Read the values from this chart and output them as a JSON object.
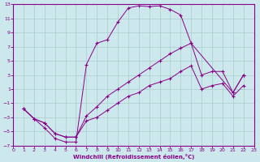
{
  "xlabel": "Windchill (Refroidissement éolien,°C)",
  "xlim": [
    0,
    23
  ],
  "ylim": [
    -7,
    13
  ],
  "yticks": [
    -7,
    -5,
    -3,
    -1,
    1,
    3,
    5,
    7,
    9,
    11,
    13
  ],
  "xticks": [
    0,
    1,
    2,
    3,
    4,
    5,
    6,
    7,
    8,
    9,
    10,
    11,
    12,
    13,
    14,
    15,
    16,
    17,
    18,
    19,
    20,
    21,
    22,
    23
  ],
  "bg_color": "#cce8ec",
  "grid_color": "#a8cccc",
  "line_color": "#880088",
  "line1_x": [
    1,
    2,
    3,
    4,
    5,
    6,
    7,
    8,
    9,
    10,
    11,
    12,
    13,
    14,
    15,
    16,
    17,
    21,
    22
  ],
  "line1_y": [
    -1.8,
    -3.2,
    -4.5,
    -6.0,
    -6.5,
    -6.5,
    4.5,
    7.5,
    8.0,
    10.5,
    12.5,
    12.8,
    12.7,
    12.8,
    12.3,
    11.5,
    7.5,
    0.5,
    3.0
  ],
  "line2_x": [
    1,
    2,
    3,
    4,
    5,
    6,
    7,
    8,
    9,
    10,
    11,
    12,
    13,
    14,
    15,
    16,
    17,
    18,
    19,
    20,
    21,
    22
  ],
  "line2_y": [
    -1.8,
    -3.2,
    -3.8,
    -5.3,
    -5.8,
    -5.8,
    -2.8,
    -1.5,
    0.0,
    1.0,
    2.0,
    3.0,
    4.0,
    5.0,
    6.0,
    6.8,
    7.5,
    3.0,
    3.5,
    3.5,
    0.5,
    3.0
  ],
  "line3_x": [
    1,
    2,
    3,
    4,
    5,
    6,
    7,
    8,
    9,
    10,
    11,
    12,
    13,
    14,
    15,
    16,
    17,
    18,
    19,
    20,
    21,
    22
  ],
  "line3_y": [
    -1.8,
    -3.2,
    -3.8,
    -5.3,
    -5.8,
    -5.8,
    -3.5,
    -3.0,
    -2.0,
    -1.0,
    0.0,
    0.5,
    1.5,
    2.0,
    2.5,
    3.5,
    4.3,
    1.0,
    1.5,
    1.8,
    0.0,
    1.5
  ]
}
